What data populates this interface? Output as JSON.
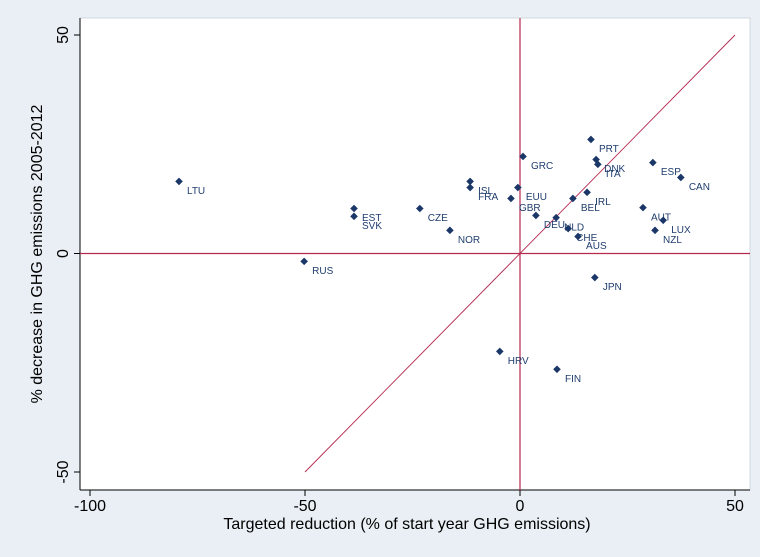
{
  "chart_data": {
    "type": "scatter",
    "x_label": "Targeted reduction (% of start year GHG emissions)",
    "y_label": "% decrease in GHG emissions 2005-2012",
    "xlim": [
      -100,
      50
    ],
    "ylim": [
      -50,
      50
    ],
    "xticks": [
      -100,
      -50,
      0,
      50
    ],
    "yticks": [
      -50,
      0,
      50
    ],
    "color": "#1a3768",
    "reference_color": "#b5294f",
    "reference_lines": {
      "x": 0,
      "y": 0
    },
    "diagonal": {
      "x": [
        -50,
        50
      ],
      "y": [
        -50,
        50
      ]
    },
    "labels": [
      "LTU",
      "EST",
      "SVK",
      "CZE",
      "NOR",
      "RUS",
      "ISL",
      "FRA",
      "GRC",
      "EUU",
      "GBR",
      "DEU",
      "NLD",
      "CHE",
      "AUS",
      "BEL",
      "IRL",
      "PRT",
      "DNK",
      "ITA",
      "ESP",
      "CAN",
      "AUT",
      "LUX",
      "NZL",
      "JPN",
      "HRV",
      "FIN"
    ],
    "x": [
      -79.3,
      -38.6,
      -38.6,
      -23.3,
      -16.3,
      -50.2,
      -11.6,
      -11.6,
      0.7,
      -0.5,
      -2.1,
      3.7,
      8.4,
      11.2,
      13.5,
      12.3,
      15.6,
      16.5,
      17.7,
      18.1,
      30.9,
      37.4,
      28.6,
      33.3,
      31.4,
      17.4,
      -4.7,
      8.6
    ],
    "y": [
      16.5,
      10.3,
      8.5,
      10.3,
      5.3,
      -1.8,
      16.5,
      15.1,
      22.2,
      15.1,
      12.6,
      8.7,
      8.2,
      5.7,
      3.9,
      12.6,
      14.0,
      26.1,
      21.5,
      20.4,
      20.8,
      17.4,
      10.5,
      7.6,
      5.3,
      -5.5,
      -22.4,
      -26.5
    ]
  }
}
